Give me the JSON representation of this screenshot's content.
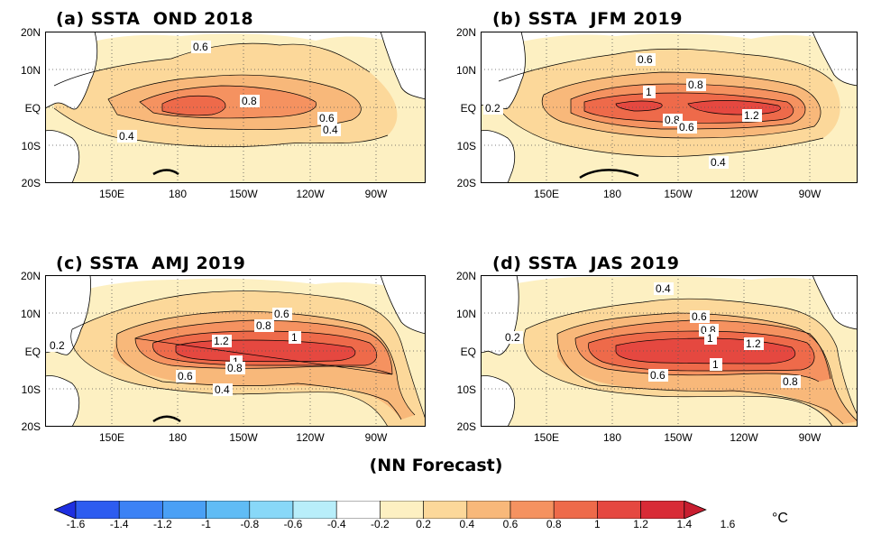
{
  "panels": [
    {
      "title": "(a) SSTA  OND 2018",
      "contour_labels": [
        "0.6",
        "0.8",
        "0.6",
        "0.4",
        "0.4"
      ]
    },
    {
      "title": "(b) SSTA  JFM 2019",
      "contour_labels": [
        "0.6",
        "0.8",
        "1",
        "1.2",
        "0.8",
        "0.6",
        "0.2",
        "0.4"
      ]
    },
    {
      "title": "(c) SSTA  AMJ 2019",
      "contour_labels": [
        "0.6",
        "0.8",
        "1.2",
        "1",
        "1",
        "0.8",
        "0.6",
        "0.4",
        "0.2"
      ]
    },
    {
      "title": "(d) SSTA  JAS 2019",
      "contour_labels": [
        "0.4",
        "0.6",
        "0.8",
        "1",
        "1.2",
        "1",
        "0.6",
        "0.8",
        "0.2"
      ]
    }
  ],
  "lat_labels": [
    "20N",
    "10N",
    "EQ",
    "10S",
    "20S"
  ],
  "lon_labels": [
    "150E",
    "180",
    "150W",
    "120W",
    "90W"
  ],
  "footer": "(NN Forecast)",
  "colorbar": {
    "labels": [
      "-1.6",
      "-1.4",
      "-1.2",
      "-1",
      "-0.8",
      "-0.6",
      "-0.4",
      "-0.2",
      "0.2",
      "0.4",
      "0.6",
      "0.8",
      "1",
      "1.2",
      "1.4",
      "1.6"
    ],
    "unit": "°C",
    "colors": [
      "#1e2fe0",
      "#2d5cf0",
      "#3c82f5",
      "#4aa0f5",
      "#60bcf5",
      "#88d8f8",
      "#b8eefa",
      "#ffffff",
      "#fdf0c2",
      "#fcd89a",
      "#f8b87a",
      "#f59260",
      "#ee6a4a",
      "#e54840",
      "#d82b36",
      "#c81e30"
    ]
  },
  "fill_colors": {
    "c02": "#fdf0c2",
    "c04": "#fcd89a",
    "c06": "#f8b87a",
    "c08": "#f59260",
    "c10": "#ee6a4a",
    "c12": "#e54840"
  }
}
